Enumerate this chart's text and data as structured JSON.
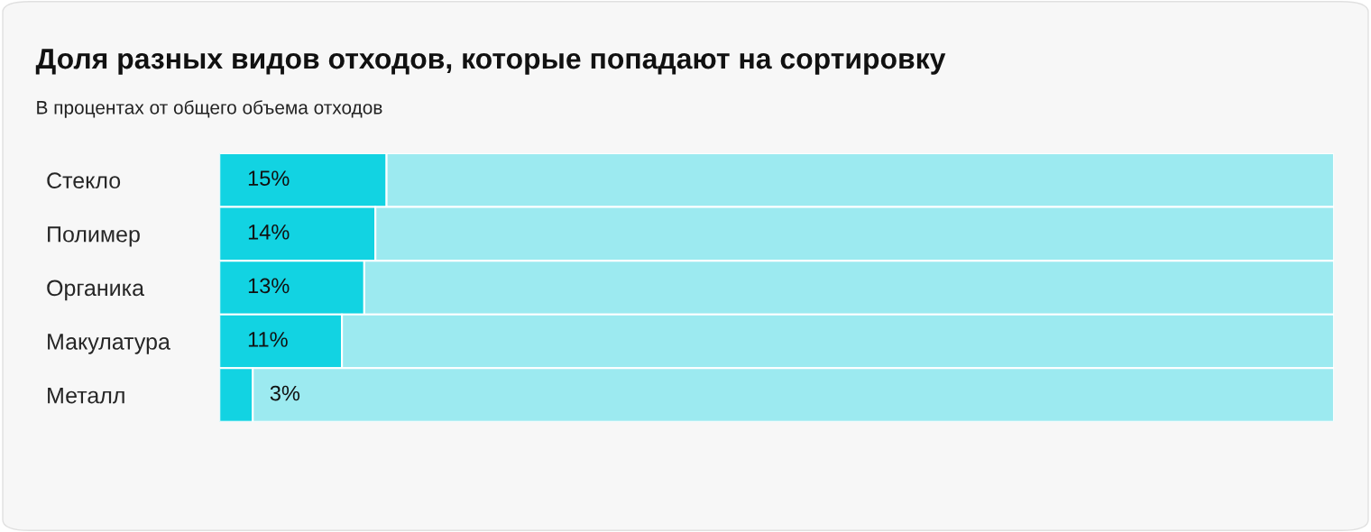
{
  "chart_data": {
    "type": "bar",
    "orientation": "horizontal",
    "stacked": true,
    "title": "Доля разных видов отходов, которые попадают на сортировку",
    "subtitle": "В процентах от общего объема отходов",
    "categories": [
      "Стекло",
      "Полимер",
      "Органика",
      "Макулатура",
      "Металл"
    ],
    "series": [
      {
        "color": "#12d3e2",
        "values": [
          15,
          14,
          13,
          11,
          3
        ],
        "value_labels": [
          "15%",
          "14%",
          "13%",
          "11%",
          "3%"
        ]
      },
      {
        "color": "#9ceaf0",
        "values": [
          85,
          86,
          87,
          89,
          97
        ]
      }
    ],
    "xlim": [
      0,
      100
    ],
    "tick_labels": "y"
  }
}
